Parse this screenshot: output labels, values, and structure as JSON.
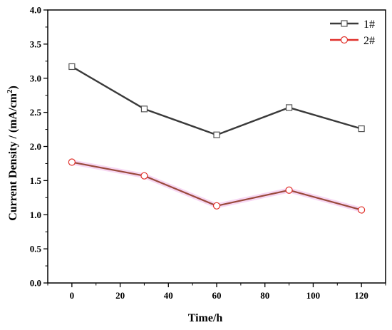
{
  "chart_data": {
    "type": "line",
    "title": "",
    "xlabel": "Time/h",
    "ylabel": "Current Density / (mA/cm²)",
    "ylabel_main": "Current Density / (mA/cm",
    "ylabel_sup": "2",
    "ylabel_tail": ")",
    "x": [
      0,
      30,
      60,
      90,
      120
    ],
    "xlim": [
      -10,
      130
    ],
    "ylim": [
      0.0,
      4.0
    ],
    "xticks": [
      0,
      20,
      40,
      60,
      80,
      100,
      120
    ],
    "yticks": [
      "0.0",
      "0.5",
      "1.0",
      "1.5",
      "2.0",
      "2.5",
      "3.0",
      "3.5",
      "4.0"
    ],
    "grid": false,
    "legend_position": "top-right",
    "series": [
      {
        "name": "1#",
        "values": [
          3.17,
          2.55,
          2.17,
          2.57,
          2.26
        ],
        "color": "#3a3a3a",
        "marker": "square"
      },
      {
        "name": "2#",
        "values": [
          1.77,
          1.57,
          1.13,
          1.36,
          1.07
        ],
        "color": "#e0302a",
        "marker": "circle"
      }
    ]
  }
}
